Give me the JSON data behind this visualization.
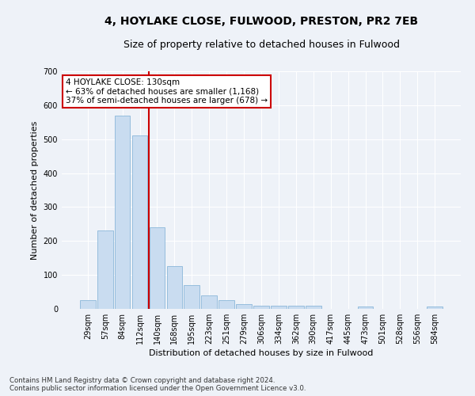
{
  "title_line1": "4, HOYLAKE CLOSE, FULWOOD, PRESTON, PR2 7EB",
  "title_line2": "Size of property relative to detached houses in Fulwood",
  "xlabel": "Distribution of detached houses by size in Fulwood",
  "ylabel": "Number of detached properties",
  "bar_color": "#c9dcf0",
  "bar_edge_color": "#7aadd4",
  "categories": [
    "29sqm",
    "57sqm",
    "84sqm",
    "112sqm",
    "140sqm",
    "168sqm",
    "195sqm",
    "223sqm",
    "251sqm",
    "279sqm",
    "306sqm",
    "334sqm",
    "362sqm",
    "390sqm",
    "417sqm",
    "445sqm",
    "473sqm",
    "501sqm",
    "528sqm",
    "556sqm",
    "584sqm"
  ],
  "values": [
    25,
    230,
    570,
    510,
    240,
    125,
    70,
    40,
    25,
    15,
    10,
    10,
    10,
    10,
    0,
    0,
    8,
    0,
    0,
    0,
    7
  ],
  "ylim": [
    0,
    700
  ],
  "yticks": [
    0,
    100,
    200,
    300,
    400,
    500,
    600,
    700
  ],
  "property_line_index": 4,
  "annotation_text": "4 HOYLAKE CLOSE: 130sqm\n← 63% of detached houses are smaller (1,168)\n37% of semi-detached houses are larger (678) →",
  "annotation_box_color": "#ffffff",
  "annotation_box_edge": "#cc0000",
  "footer_line1": "Contains HM Land Registry data © Crown copyright and database right 2024.",
  "footer_line2": "Contains public sector information licensed under the Open Government Licence v3.0.",
  "background_color": "#eef2f8",
  "grid_color": "#ffffff",
  "red_line_color": "#cc0000",
  "title_fontsize": 10,
  "subtitle_fontsize": 9,
  "axis_label_fontsize": 8,
  "tick_fontsize": 7,
  "annotation_fontsize": 7.5,
  "footer_fontsize": 6.2,
  "bar_width": 0.9
}
